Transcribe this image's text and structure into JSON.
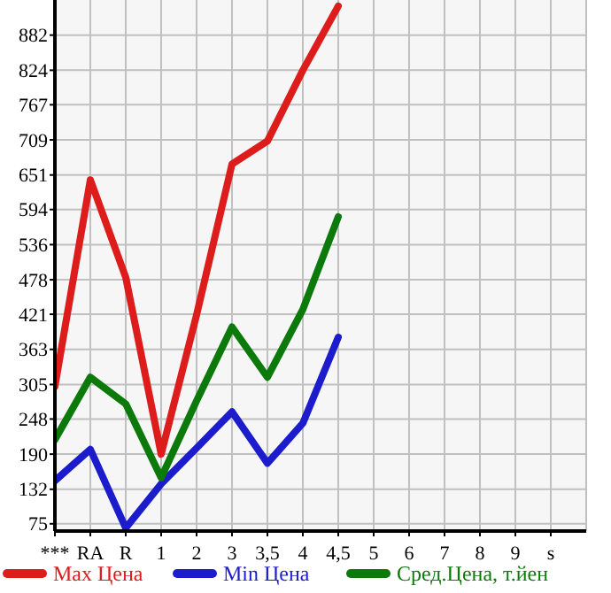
{
  "chart_data": {
    "type": "line",
    "categories": [
      "***",
      "RA",
      "R",
      "1",
      "2",
      "3",
      "3,5",
      "4",
      "4,5",
      "5",
      "6",
      "7",
      "8",
      "9",
      "s"
    ],
    "ylim": [
      63,
      940
    ],
    "yticks": [
      75,
      132,
      190,
      248,
      305,
      363,
      421,
      478,
      536,
      594,
      651,
      709,
      767,
      824,
      882
    ],
    "grid": true,
    "legend": "bottom",
    "marker": "none",
    "line_style": "solid",
    "series": [
      {
        "name": "Max Цена",
        "color": "#dd1c1c",
        "values": [
          302,
          643,
          482,
          190,
          420,
          669,
          707,
          824,
          930,
          null,
          null,
          null,
          null,
          null,
          null
        ]
      },
      {
        "name": "Min Цена",
        "color": "#1c1ccc",
        "values": [
          146,
          198,
          68,
          141,
          200,
          260,
          175,
          241,
          383,
          null,
          null,
          null,
          null,
          null,
          null
        ]
      },
      {
        "name": "Сред.Цена, т.йен",
        "color": "#0b7a0b",
        "values": [
          214,
          317,
          273,
          151,
          278,
          400,
          317,
          429,
          582,
          null,
          null,
          null,
          null,
          null,
          null
        ]
      }
    ]
  }
}
